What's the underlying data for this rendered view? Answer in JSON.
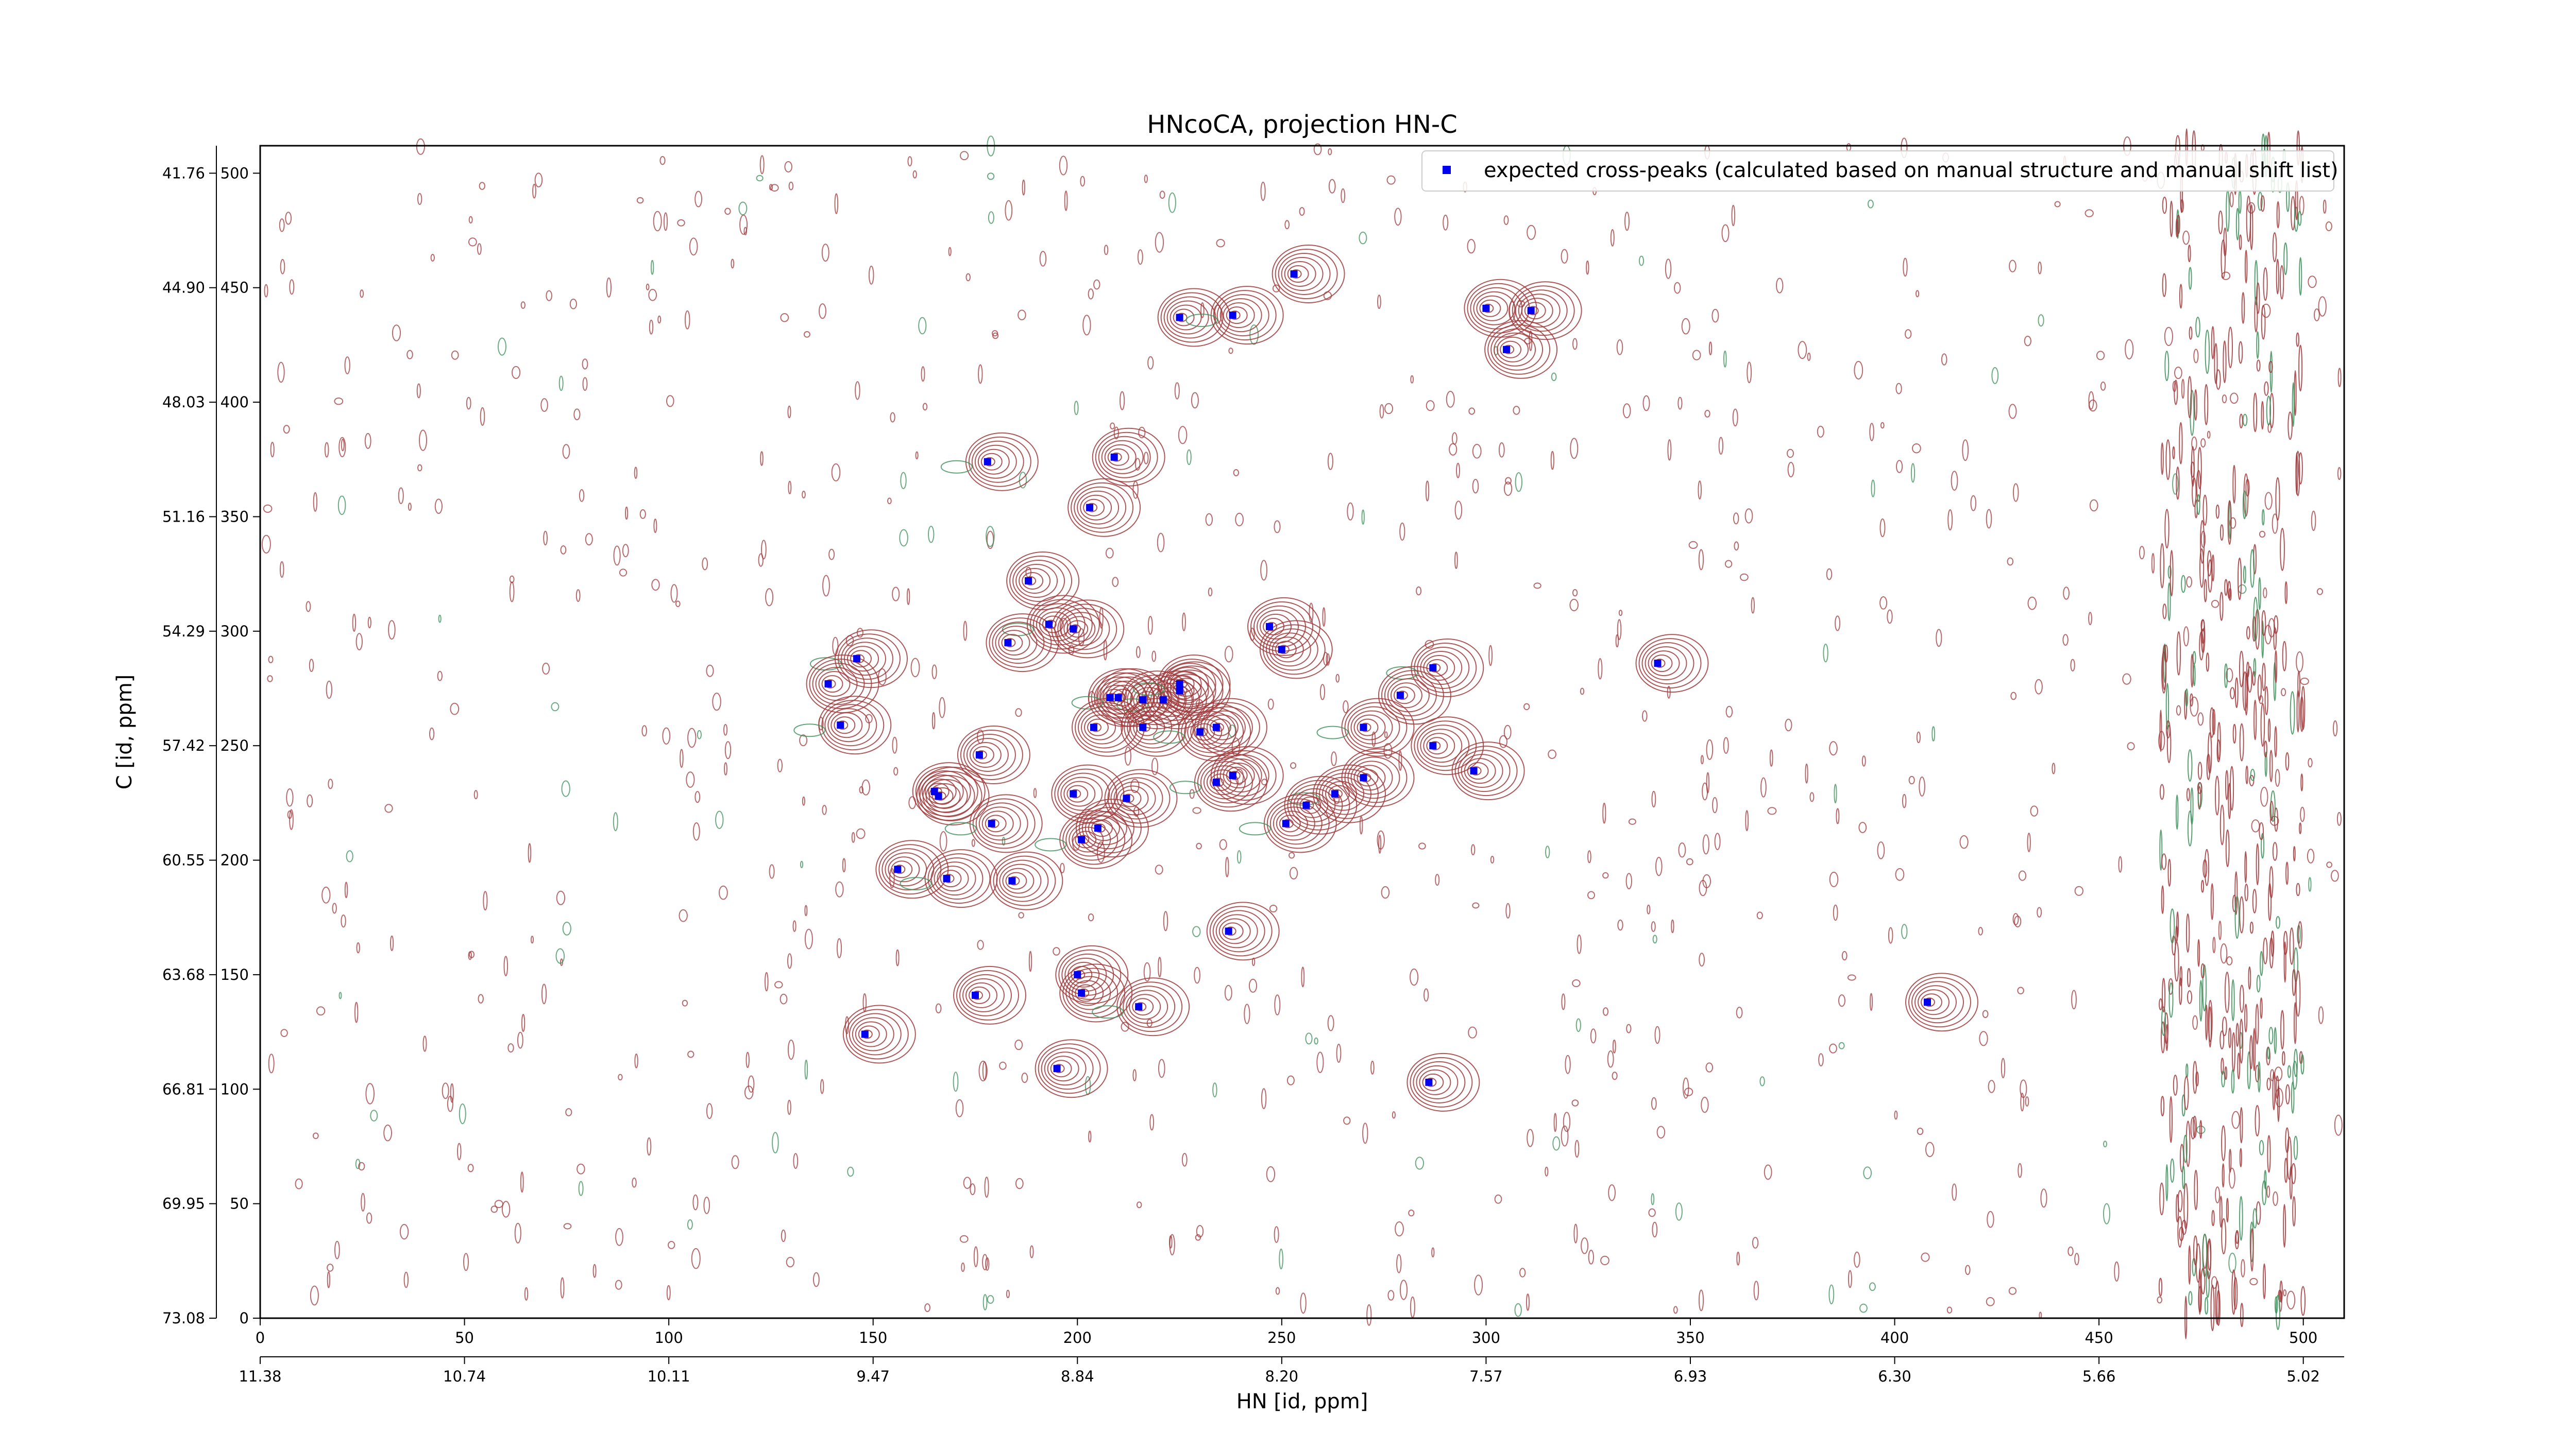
{
  "chart_data": {
    "type": "scatter",
    "title": "HNcoCA, projection HN-C",
    "xlabel": "HN [id, ppm]",
    "ylabel": "C [id, ppm]",
    "xlim": [
      0,
      510
    ],
    "ylim": [
      0,
      512
    ],
    "x_ticks_index": [
      "0",
      "50",
      "100",
      "150",
      "200",
      "250",
      "300",
      "350",
      "400",
      "450",
      "500"
    ],
    "x_ticks_ppm": [
      "11.38",
      "10.74",
      "10.11",
      "9.47",
      "8.84",
      "8.20",
      "7.57",
      "6.93",
      "6.30",
      "5.66",
      "5.02"
    ],
    "y_ticks_index": [
      "0",
      "50",
      "100",
      "150",
      "200",
      "250",
      "300",
      "350",
      "400",
      "450",
      "500"
    ],
    "y_ticks_ppm": [
      "73.08",
      "69.95",
      "66.81",
      "63.68",
      "60.55",
      "57.42",
      "54.29",
      "51.16",
      "48.03",
      "44.90",
      "41.76"
    ],
    "legend_position": "upper-right",
    "colors": {
      "positive_contour": "#a0393c",
      "negative_contour": "#3c8f5a",
      "marker": "#0000ee"
    },
    "series": [
      {
        "name": "expected cross-peaks (calculated based on manual structure and manual shift list)",
        "points": [
          [
            225,
            437
          ],
          [
            238,
            438
          ],
          [
            253,
            456
          ],
          [
            300,
            441
          ],
          [
            311,
            440
          ],
          [
            305,
            423
          ],
          [
            178,
            374
          ],
          [
            209,
            376
          ],
          [
            203,
            354
          ],
          [
            188,
            322
          ],
          [
            193,
            303
          ],
          [
            199,
            301
          ],
          [
            183,
            295
          ],
          [
            146,
            288
          ],
          [
            139,
            277
          ],
          [
            142,
            259
          ],
          [
            247,
            302
          ],
          [
            250,
            292
          ],
          [
            208,
            271
          ],
          [
            216,
            270
          ],
          [
            221,
            270
          ],
          [
            225,
            274
          ],
          [
            225,
            277
          ],
          [
            210,
            271
          ],
          [
            204,
            258
          ],
          [
            216,
            258
          ],
          [
            230,
            256
          ],
          [
            234,
            258
          ],
          [
            176,
            246
          ],
          [
            287,
            284
          ],
          [
            279,
            272
          ],
          [
            270,
            258
          ],
          [
            287,
            250
          ],
          [
            297,
            239
          ],
          [
            165,
            230
          ],
          [
            166,
            228
          ],
          [
            199,
            229
          ],
          [
            212,
            227
          ],
          [
            234,
            234
          ],
          [
            238,
            237
          ],
          [
            270,
            236
          ],
          [
            263,
            229
          ],
          [
            256,
            224
          ],
          [
            251,
            216
          ],
          [
            179,
            216
          ],
          [
            205,
            214
          ],
          [
            201,
            209
          ],
          [
            156,
            196
          ],
          [
            168,
            192
          ],
          [
            184,
            191
          ],
          [
            237,
            169
          ],
          [
            200,
            150
          ],
          [
            201,
            142
          ],
          [
            175,
            141
          ],
          [
            215,
            136
          ],
          [
            148,
            124
          ],
          [
            195,
            109
          ],
          [
            286,
            103
          ],
          [
            342,
            286
          ],
          [
            408,
            138
          ]
        ]
      }
    ]
  }
}
